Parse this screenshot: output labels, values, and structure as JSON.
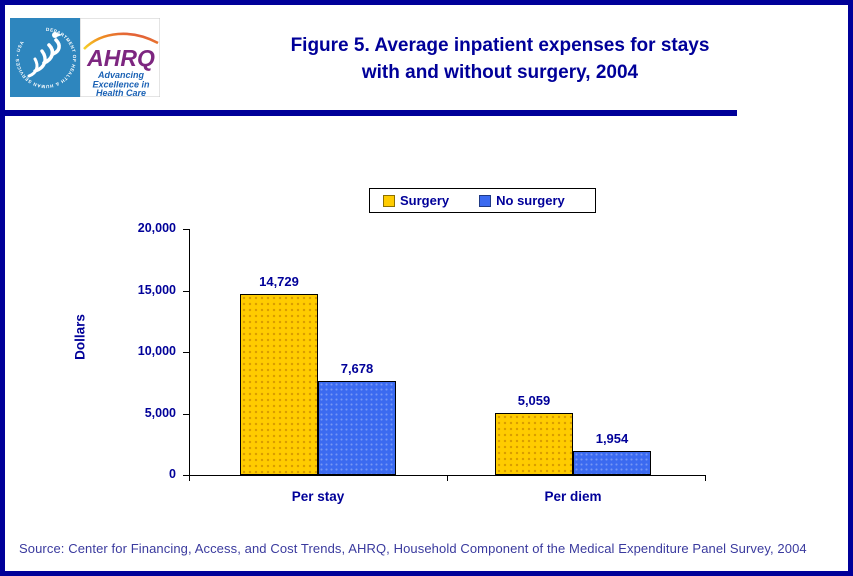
{
  "header": {
    "logo": {
      "hhs_circle_text": "DEPARTMENT OF HEALTH & HUMAN SERVICES • USA",
      "ahrq_acronym": "AHRQ",
      "ahrq_tagline_lines": [
        "Advancing",
        "Excellence in",
        "Health Care"
      ]
    },
    "title_line1": "Figure 5. Average inpatient expenses for stays",
    "title_line2": "with and without surgery, 2004"
  },
  "chart_data": {
    "type": "bar",
    "title": "Figure 5. Average inpatient expenses for stays with and without surgery, 2004",
    "categories": [
      "Per stay",
      "Per diem"
    ],
    "series": [
      {
        "name": "Surgery",
        "color": "#FFCC00",
        "values": [
          14729,
          5059
        ],
        "labels": [
          "14,729",
          "5,059"
        ]
      },
      {
        "name": "No surgery",
        "color": "#3B6AF0",
        "values": [
          7678,
          1954
        ],
        "labels": [
          "7,678",
          "1,954"
        ]
      }
    ],
    "ylabel": "Dollars",
    "ylim": [
      0,
      20000
    ],
    "ytick_labels": [
      "0",
      "5,000",
      "10,000",
      "15,000",
      "20,000"
    ],
    "grid": false,
    "legend_position": "top-center"
  },
  "footer": {
    "source": "Source: Center for Financing, Access, and Cost Trends, AHRQ, Household Component of the Medical Expenditure Panel Survey, 2004"
  },
  "colors": {
    "navy_text": "#000099",
    "page_border": "#000099",
    "divider_bar": "#000099",
    "surgery_bar": "#FFCC00",
    "no_surgery_bar": "#3B6AF0",
    "axis_line": "#000000",
    "hhs_logo_bg": "#2E86BE",
    "ahrq_purple": "#7D2680",
    "ahrq_tagline_blue": "#1B62B5"
  }
}
